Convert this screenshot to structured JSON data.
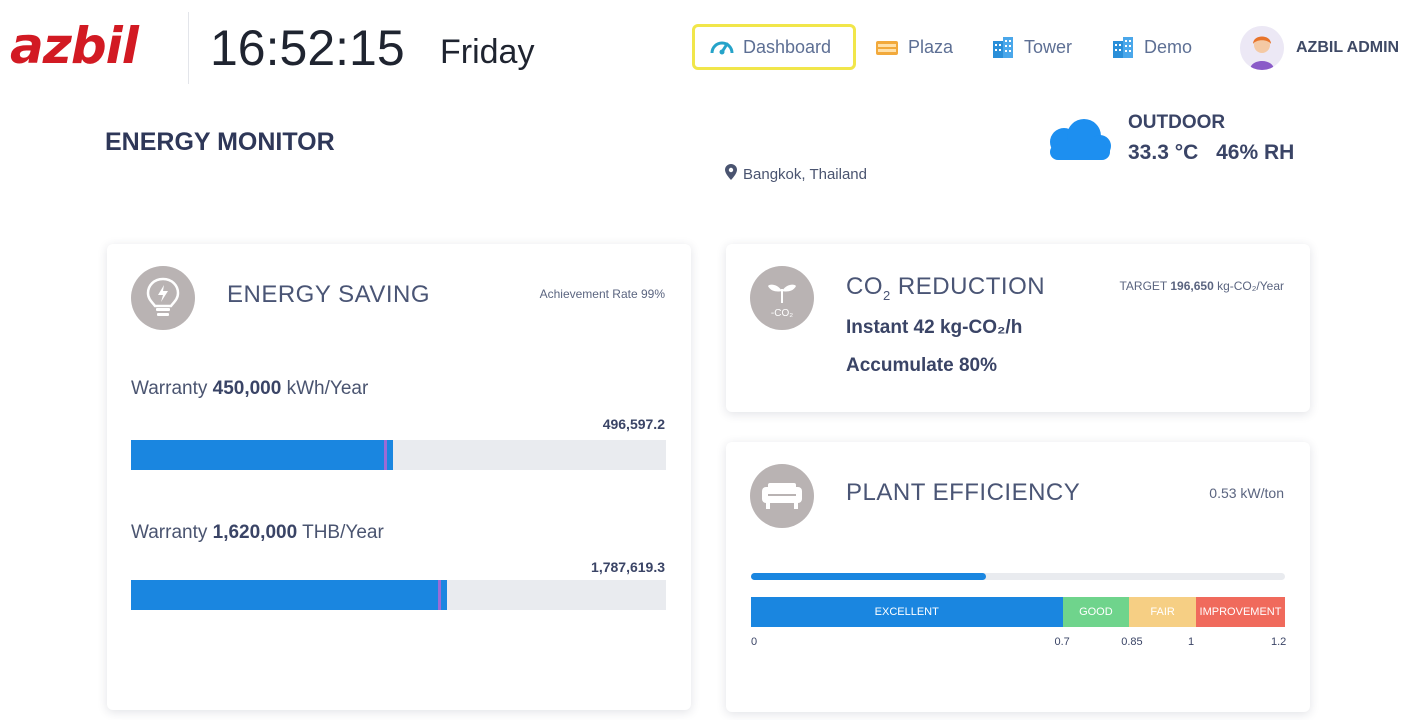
{
  "header": {
    "logo_text": "azbil",
    "time": "16:52:15",
    "day": "Friday",
    "nav": [
      {
        "label": "Dashboard",
        "icon": "dashboard-gauge-icon",
        "active": true
      },
      {
        "label": "Plaza",
        "icon": "plaza-icon"
      },
      {
        "label": "Tower",
        "icon": "building-icon"
      },
      {
        "label": "Demo",
        "icon": "building-icon"
      }
    ],
    "user": {
      "name": "AZBIL ADMIN",
      "avatar": "avatar-icon"
    }
  },
  "page": {
    "title": "ENERGY MONITOR",
    "location": "Bangkok, Thailand"
  },
  "outdoor": {
    "label": "OUTDOOR",
    "temperature": "33.3 °C",
    "humidity": "46% RH"
  },
  "energy_saving": {
    "title": "ENERGY SAVING",
    "achievement": "Achievement Rate 99%",
    "rows": [
      {
        "prefix": "Warranty ",
        "amount": "450,000",
        "unit": " kWh/Year",
        "value": "496,597.2",
        "fill_fraction": 0.49
      },
      {
        "prefix": "Warranty ",
        "amount": "1,620,000",
        "unit": " THB/Year",
        "value": "1,787,619.3",
        "fill_fraction": 0.59
      }
    ]
  },
  "co2": {
    "title_prefix": "CO",
    "title_sub": "2",
    "title_suffix": " REDUCTION",
    "icon_label": "-CO₂",
    "target_label": "TARGET ",
    "target_value": "196,650",
    "target_unit": " kg-CO₂/Year",
    "instant": "Instant  42 kg-CO₂/h",
    "accumulate": "Accumulate  80%"
  },
  "plant": {
    "title": "PLANT EFFICIENCY",
    "value": "0.53 kW/ton",
    "progress_fraction": 0.44,
    "segments": [
      {
        "label": "EXCELLENT",
        "color": "#1a86e0",
        "weight": 0.7
      },
      {
        "label": "GOOD",
        "color": "#6fd48c",
        "weight": 0.15
      },
      {
        "label": "FAIR",
        "color": "#f6cf84",
        "weight": 0.15
      },
      {
        "label": "IMPROVEMENT",
        "color": "#f06a5c",
        "weight": 0.2
      }
    ],
    "ticks": [
      {
        "label": "0",
        "value": 0
      },
      {
        "label": "0.7",
        "value": 0.7
      },
      {
        "label": "0.85",
        "value": 0.85
      },
      {
        "label": "1",
        "value": 1.0
      },
      {
        "label": "1.2",
        "value": 1.2
      }
    ]
  },
  "colors": {
    "brand_red": "#d21a23",
    "accent_blue": "#1a86e0",
    "active_nav_border": "#f1e64a"
  }
}
